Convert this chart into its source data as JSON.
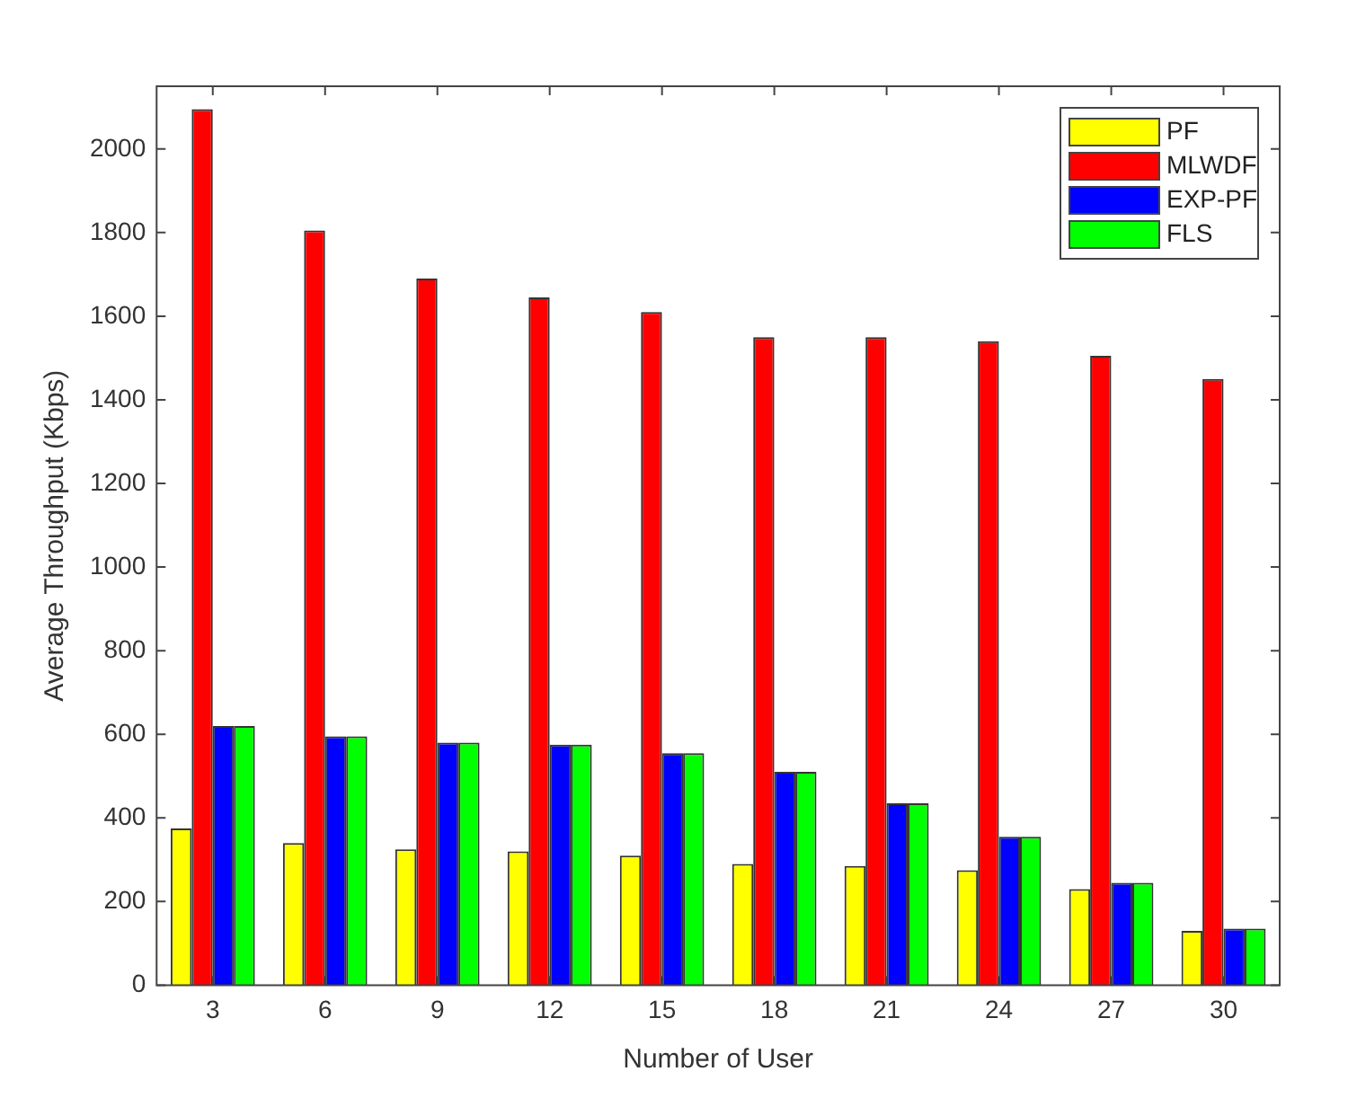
{
  "chart_data": {
    "type": "bar",
    "xlabel": "Number of User",
    "ylabel": "Average Throughput (Kbps)",
    "categories": [
      "3",
      "6",
      "9",
      "12",
      "15",
      "18",
      "21",
      "24",
      "27",
      "30"
    ],
    "series": [
      {
        "name": "PF",
        "color": "#ffff00",
        "values": [
          375,
          340,
          325,
          320,
          310,
          290,
          285,
          275,
          230,
          130
        ]
      },
      {
        "name": "MLWDF",
        "color": "#ff0000",
        "values": [
          2095,
          1805,
          1690,
          1645,
          1610,
          1550,
          1550,
          1540,
          1505,
          1450
        ]
      },
      {
        "name": "EXP-PF",
        "color": "#0000ff",
        "values": [
          620,
          595,
          580,
          575,
          555,
          510,
          435,
          355,
          245,
          135
        ]
      },
      {
        "name": "FLS",
        "color": "#00ff00",
        "values": [
          620,
          595,
          580,
          575,
          555,
          510,
          435,
          355,
          245,
          135
        ]
      }
    ],
    "ylim": [
      0,
      2150
    ],
    "yticks": [
      0,
      200,
      400,
      600,
      800,
      1000,
      1200,
      1400,
      1600,
      1800,
      2000
    ],
    "grid": false,
    "legend": "top right"
  }
}
